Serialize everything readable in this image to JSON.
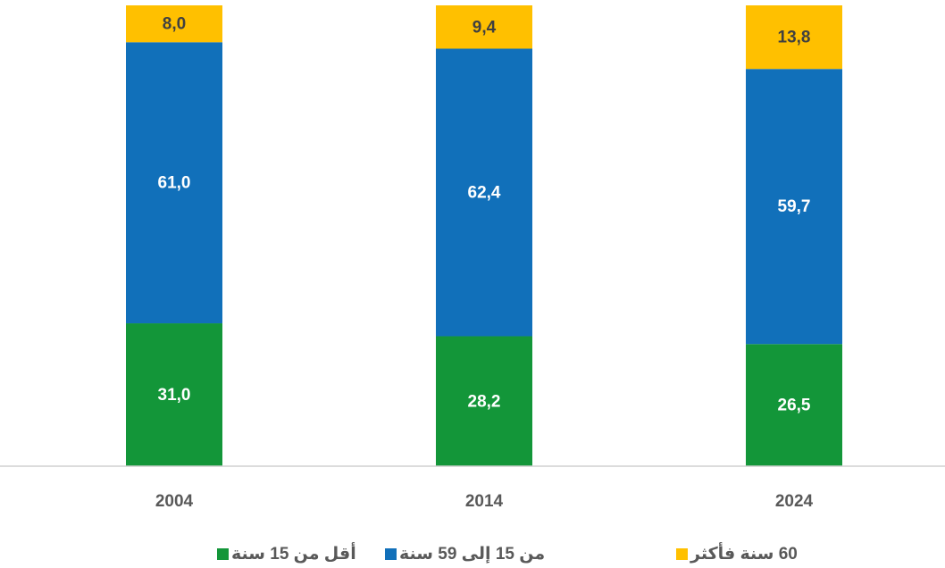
{
  "chart_data": {
    "type": "stacked_bar",
    "categories": [
      "2004",
      "2014",
      "2024"
    ],
    "series": [
      {
        "name": "أقل من 15 سنة",
        "color": "#139639",
        "values": [
          31.0,
          28.2,
          26.5
        ],
        "value_labels": [
          "31,0",
          "28,2",
          "26,5"
        ]
      },
      {
        "name": "من 15 إلى 59 سنة",
        "color": "#1170ba",
        "values": [
          61.0,
          62.4,
          59.7
        ],
        "value_labels": [
          "61,0",
          "62,4",
          "59,7"
        ]
      },
      {
        "name": "60 سنة فأكثر",
        "color": "#ffc000",
        "values": [
          8.0,
          9.4,
          13.8
        ],
        "value_labels": [
          "8,0",
          "9,4",
          "13,8"
        ]
      }
    ],
    "ylim": [
      0,
      100
    ],
    "legend": "bottom"
  }
}
